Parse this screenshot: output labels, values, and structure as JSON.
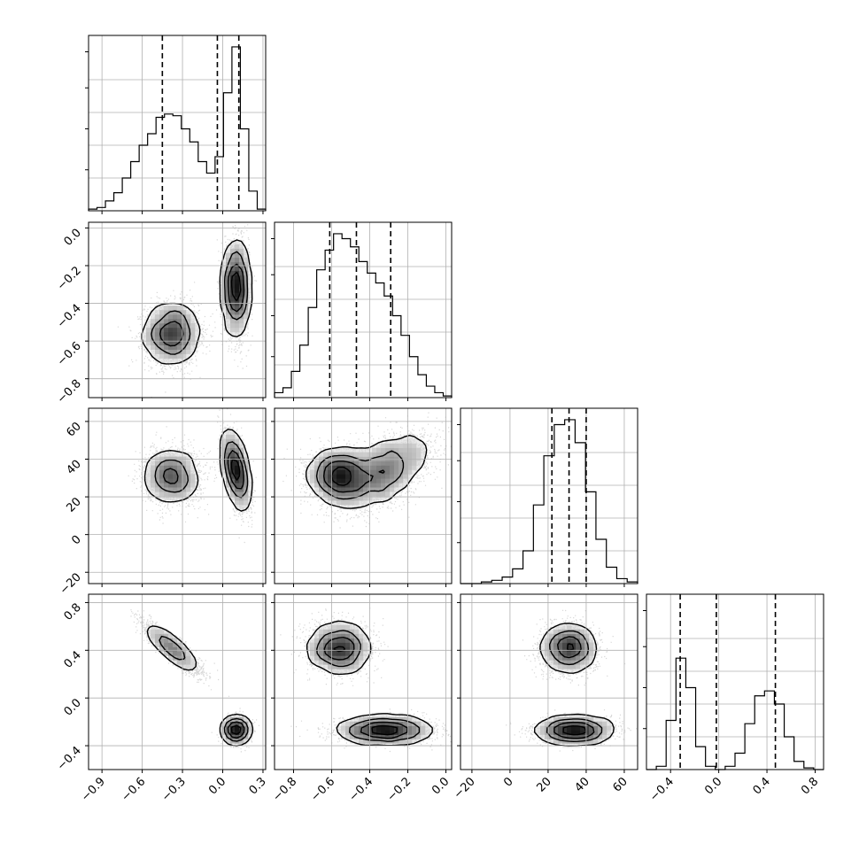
{
  "chart_data": {
    "type": "corner",
    "grid": true,
    "colors": {
      "hist": "#000000",
      "quantile": "#000000",
      "grid": "#b0b0b0",
      "points": "#8c8c8c",
      "contour": "#000000"
    },
    "parameters": [
      {
        "range": [
          -1.0,
          0.32
        ],
        "ticks": [
          -0.9,
          -0.6,
          -0.3,
          0.0,
          0.3
        ],
        "tick_labels": [
          "−0.9",
          "−0.6",
          "−0.3",
          "0.0",
          "0.3"
        ],
        "quantiles": [
          -0.45,
          -0.04,
          0.12
        ],
        "histogram": [
          0.01,
          0.02,
          0.06,
          0.11,
          0.2,
          0.3,
          0.4,
          0.47,
          0.57,
          0.59,
          0.58,
          0.5,
          0.42,
          0.3,
          0.23,
          0.33,
          0.72,
          1.0,
          0.5,
          0.12,
          0.01
        ]
      },
      {
        "range": [
          -0.9,
          0.03
        ],
        "ticks": [
          -0.8,
          -0.6,
          -0.4,
          -0.2,
          0.0
        ],
        "tick_labels": [
          "−0.8",
          "−0.6",
          "−0.4",
          "−0.2",
          "0.0"
        ],
        "quantiles": [
          -0.61,
          -0.47,
          -0.29
        ],
        "histogram": [
          0.03,
          0.06,
          0.16,
          0.32,
          0.55,
          0.78,
          0.9,
          1.0,
          0.97,
          0.92,
          0.83,
          0.76,
          0.7,
          0.62,
          0.5,
          0.38,
          0.25,
          0.14,
          0.07,
          0.03,
          0.01
        ]
      },
      {
        "range": [
          -26,
          67
        ],
        "ticks": [
          -20,
          0,
          20,
          40,
          60
        ],
        "tick_labels": [
          "−20",
          "0",
          "20",
          "40",
          "60"
        ],
        "quantiles": [
          22,
          31,
          40
        ],
        "histogram": [
          0.0,
          0.0,
          0.01,
          0.02,
          0.04,
          0.09,
          0.2,
          0.48,
          0.78,
          0.97,
          1.0,
          0.86,
          0.56,
          0.27,
          0.1,
          0.03,
          0.01
        ]
      },
      {
        "range": [
          -0.6,
          0.87
        ],
        "ticks": [
          -0.4,
          0.0,
          0.4,
          0.8
        ],
        "tick_labels": [
          "−0.4",
          "0.0",
          "0.4",
          "0.8"
        ],
        "quantiles": [
          -0.32,
          -0.02,
          0.47
        ],
        "histogram": [
          0.0,
          0.02,
          0.3,
          0.68,
          0.5,
          0.14,
          0.02,
          0.0,
          0.02,
          0.1,
          0.28,
          0.45,
          0.48,
          0.4,
          0.2,
          0.05,
          0.01,
          0.0
        ]
      }
    ],
    "distribution": [
      {
        "weight": 0.5,
        "mean": [
          -0.38,
          -0.56,
          31,
          0.42
        ],
        "sd": [
          0.1,
          0.08,
          7,
          0.1
        ]
      },
      {
        "weight": 0.5,
        "mean": [
          0.1,
          -0.32,
          34,
          -0.27
        ],
        "sd": [
          0.045,
          0.12,
          10,
          0.05
        ]
      }
    ],
    "correlations": [
      {
        "params": [
          0,
          3
        ],
        "component": 0,
        "rho": -0.88
      },
      {
        "params": [
          1,
          2
        ],
        "component": 1,
        "rho": 0.55
      },
      {
        "params": [
          0,
          2
        ],
        "component": 1,
        "rho": -0.55
      }
    ]
  }
}
